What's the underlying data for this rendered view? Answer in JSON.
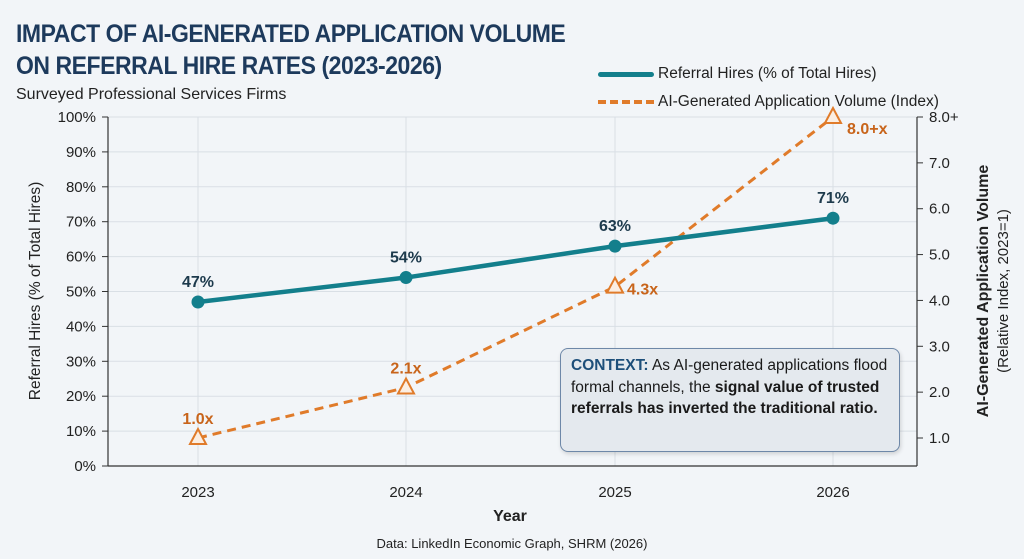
{
  "chart_data": {
    "type": "line",
    "title": "IMPACT OF AI-GENERATED APPLICATION VOLUME ON REFERRAL HIRE RATES (2023-2026)",
    "title_lines": [
      "IMPACT OF AI-GENERATED APPLICATION VOLUME",
      "ON REFERRAL HIRE RATES (2023-2026)"
    ],
    "subtitle": "Surveyed Professional Services Firms",
    "xlabel": "Year",
    "ylabel_left": "Referral Hires (% of Total Hires)",
    "ylabel_right": "AI-Generated Application Volume",
    "ylabel_right_sub": "(Relative Index, 2023=1)",
    "categories": [
      "2023",
      "2024",
      "2025",
      "2026"
    ],
    "ylim_left": [
      0,
      100
    ],
    "left_ticks": [
      "0%",
      "10%",
      "20%",
      "30%",
      "40%",
      "50%",
      "60%",
      "70%",
      "80%",
      "90%",
      "100%"
    ],
    "ylim_right": [
      1.0,
      8.0
    ],
    "right_ticks": [
      "1.0",
      "2.0",
      "3.0",
      "4.0",
      "5.0",
      "6.0",
      "7.0",
      "8.0+"
    ],
    "grid": true,
    "legend_position": "top-right",
    "series": [
      {
        "name": "Referral Hires (% of Total Hires)",
        "axis": "left",
        "style": "solid",
        "color": "#137f8c",
        "marker": "circle",
        "values": [
          47,
          54,
          63,
          71
        ],
        "labels": [
          "47%",
          "54%",
          "63%",
          "71%"
        ]
      },
      {
        "name": "AI-Generated Application Volume (Index)",
        "axis": "right",
        "style": "dashed",
        "color": "#e07b2a",
        "marker": "triangle",
        "values": [
          1.0,
          2.1,
          4.3,
          8.0
        ],
        "labels": [
          "1.0x",
          "2.1x",
          "4.3x",
          "8.0+x"
        ]
      }
    ],
    "annotation": {
      "label": "CONTEXT:",
      "text_plain_1": " As AI-generated applications flood formal channels, the ",
      "text_bold": "signal value of trusted referrals has inverted the traditional ratio."
    },
    "source": "Data: LinkedIn Economic Graph, SHRM (2026)"
  }
}
